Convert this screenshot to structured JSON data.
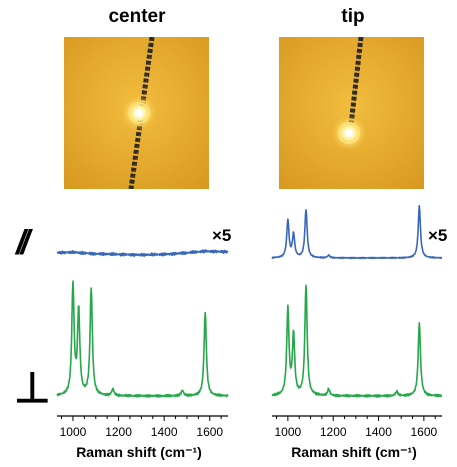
{
  "columns": [
    {
      "title": "center",
      "multiplier": "×5"
    },
    {
      "title": "tip",
      "multiplier": "×5"
    }
  ],
  "polarizations": {
    "parallel": "//",
    "perpendicular": "⊥"
  },
  "colors": {
    "parallel_series": "#3a68b8",
    "perpendicular_series": "#25a74a",
    "photo_background": "#e7ac2c",
    "wire": "#2a2d22",
    "laser_spot": "#fff6c0"
  },
  "chart_data": [
    {
      "type": "line",
      "panel": "center",
      "xlabel": "Raman shift (cm⁻¹)",
      "xlim": [
        930,
        1680
      ],
      "x_ticks": [
        1000,
        1200,
        1400,
        1600
      ],
      "series": [
        {
          "polarization": "parallel",
          "scale": "×5",
          "x": [
            930,
            1000,
            1100,
            1200,
            1300,
            1400,
            1500,
            1580,
            1680
          ],
          "y": [
            0.1,
            0.11,
            0.08,
            0.07,
            0.06,
            0.07,
            0.1,
            0.13,
            0.12
          ]
        },
        {
          "polarization": "perpendicular",
          "peaks": [
            {
              "x": 1000,
              "height": 1.0
            },
            {
              "x": 1025,
              "height": 0.77
            },
            {
              "x": 1080,
              "height": 0.97
            },
            {
              "x": 1175,
              "height": 0.06
            },
            {
              "x": 1480,
              "height": 0.05
            },
            {
              "x": 1580,
              "height": 0.76
            }
          ]
        }
      ]
    },
    {
      "type": "line",
      "panel": "tip",
      "xlabel": "Raman shift (cm⁻¹)",
      "xlim": [
        930,
        1680
      ],
      "x_ticks": [
        1000,
        1200,
        1400,
        1600
      ],
      "series": [
        {
          "polarization": "parallel",
          "scale": "×5",
          "peaks": [
            {
              "x": 1000,
              "height": 0.72
            },
            {
              "x": 1025,
              "height": 0.45
            },
            {
              "x": 1080,
              "height": 0.92
            },
            {
              "x": 1180,
              "height": 0.05
            },
            {
              "x": 1580,
              "height": 1.0
            }
          ]
        },
        {
          "polarization": "perpendicular",
          "peaks": [
            {
              "x": 1000,
              "height": 0.78
            },
            {
              "x": 1025,
              "height": 0.55
            },
            {
              "x": 1080,
              "height": 1.0
            },
            {
              "x": 1180,
              "height": 0.06
            },
            {
              "x": 1480,
              "height": 0.04
            },
            {
              "x": 1580,
              "height": 0.67
            }
          ]
        }
      ]
    }
  ]
}
